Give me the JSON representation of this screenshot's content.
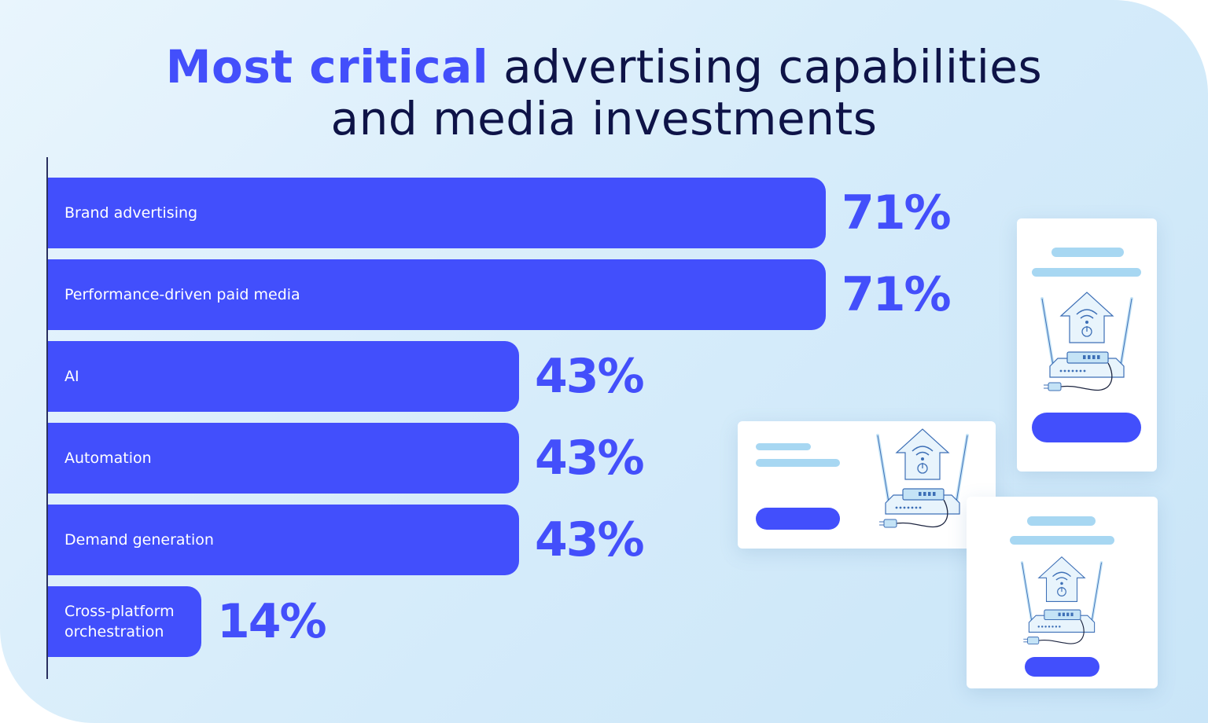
{
  "title": {
    "highlight": "Most critical",
    "rest_line1": " advertising capabilities",
    "line2": "and media investments"
  },
  "colors": {
    "bar": "#424ffc",
    "value_text": "#434ffb",
    "title_text": "#0e1347",
    "background": "#d6ecfa",
    "illustration_line": "#a7d7f2"
  },
  "chart_data": {
    "type": "bar",
    "orientation": "horizontal",
    "title": "Most critical advertising capabilities and media investments",
    "categories": [
      "Brand advertising",
      "Performance-driven paid media",
      "AI",
      "Automation",
      "Demand generation",
      "Cross-platform orchestration"
    ],
    "values": [
      71,
      71,
      43,
      43,
      43,
      14
    ],
    "labels": [
      "71%",
      "71%",
      "43%",
      "43%",
      "43%",
      "14%"
    ],
    "unit": "%",
    "xlim": [
      0,
      100
    ],
    "grid": false,
    "legend": "none"
  },
  "illustrations": {
    "cards": [
      {
        "name": "router-card-top-right",
        "icon": "router-icon"
      },
      {
        "name": "router-card-middle",
        "icon": "router-icon"
      },
      {
        "name": "router-card-bottom-right",
        "icon": "router-icon"
      }
    ]
  }
}
